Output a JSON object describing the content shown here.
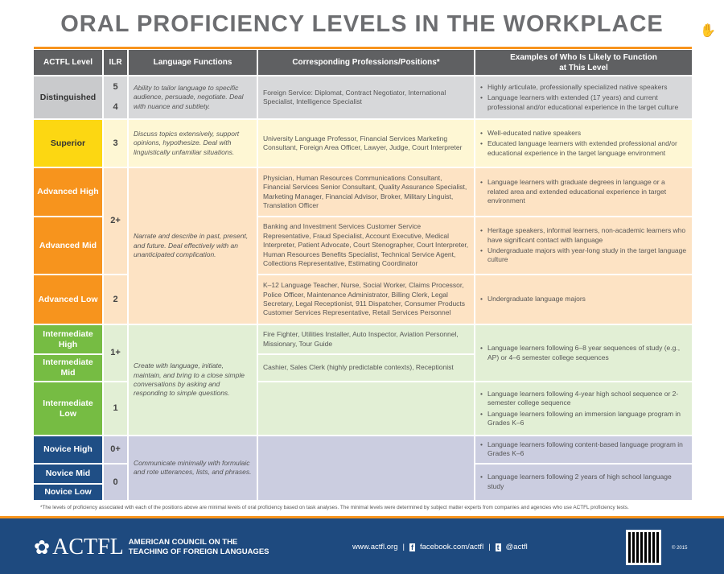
{
  "title": "ORAL PROFICIENCY LEVELS IN THE WORKPLACE",
  "headers": [
    "ACTFL Level",
    "ILR",
    "Language Functions",
    "Corresponding Professions/Positions*",
    "Examples of Who Is Likely to Function at This Level"
  ],
  "levels": [
    "Distinguished",
    "Superior",
    "Advanced High",
    "Advanced Mid",
    "Advanced Low",
    "Intermediate High",
    "Intermediate Mid",
    "Intermediate Low",
    "Novice High",
    "Novice Mid",
    "Novice Low"
  ],
  "ilr": {
    "dist_a": "5",
    "dist_b": "4",
    "sup": "3",
    "adv_high": "2+",
    "adv_low": "2",
    "int_high": "1+",
    "int_low": "1",
    "nov_high": "0+",
    "nov_low": "0"
  },
  "functions": {
    "distinguished": "Ability to tailor language to specific audience, persuade, negotiate. Deal with nuance and subtlety.",
    "superior": "Discuss topics extensively, support opinions, hypothesize. Deal with linguistically unfamiliar situations.",
    "advanced": "Narrate and describe in past, present, and future. Deal effectively with an unanticipated complication.",
    "intermediate": "Create with language, initiate, maintain, and bring to a close simple conversations by asking and responding to simple questions.",
    "novice": "Communicate minimally with formulaic and rote utterances, lists, and phrases."
  },
  "professions": {
    "distinguished": "Foreign Service: Diplomat, Contract Negotiator, International Specialist, Intelligence Specialist",
    "superior": "University Language Professor, Financial Services Marketing Consultant, Foreign Area Officer, Lawyer, Judge, Court Interpreter",
    "adv_high": "Physician, Human Resources Communications Consultant, Financial Services Senior Consultant, Quality Assurance Specialist, Marketing Manager, Financial Advisor, Broker, Military Linguist, Translation Officer",
    "adv_mid": "Banking and Investment Services Customer Service Representative, Fraud Specialist, Account Executive, Medical Interpreter, Patient Advocate, Court Stenographer, Court Interpreter, Human Resources Benefits Specialist, Technical Service Agent, Collections Representative, Estimating Coordinator",
    "adv_low": "K–12 Language Teacher, Nurse, Social Worker, Claims Processor, Police Officer, Maintenance Administrator, Billing Clerk, Legal Secretary, Legal Receptionist, 911 Dispatcher, Consumer Products Customer Services Representative, Retail Services Personnel",
    "int_high": "Fire Fighter, Utilities Installer, Auto Inspector, Aviation Personnel, Missionary, Tour Guide",
    "int_mid": "Cashier, Sales Clerk (highly predictable contexts), Receptionist"
  },
  "examples": {
    "distinguished": [
      "Highly articulate, professionally specialized native speakers",
      "Language learners with extended (17 years) and current professional and/or educational experience in the target culture"
    ],
    "superior": [
      "Well-educated native speakers",
      "Educated language learners with extended professional and/or educational experience in the target language environment"
    ],
    "adv_high": [
      "Language learners with graduate degrees in language or a related area and extended educational experience in target environment"
    ],
    "adv_mid": [
      "Heritage speakers, informal learners, non-academic learners who have significant contact with language",
      "Undergraduate majors with year-long study in the target language culture"
    ],
    "adv_low": [
      "Undergraduate language majors"
    ],
    "int_high_mid": [
      "Language learners following 6–8 year sequences of study (e.g., AP) or 4–6 semester college sequences"
    ],
    "int_low": [
      "Language learners following 4-year high school sequence or 2-semester college sequence",
      "Language learners following an immersion language program in Grades K–6"
    ],
    "nov_high": [
      "Language learners following content-based language program in Grades K–6"
    ],
    "nov_mid_low": [
      "Language learners following 2 years of high school language study"
    ]
  },
  "footnote": "*The levels of proficiency associated with each of the positions above are minimal levels of oral proficiency based on task analyses. The minimal levels were determined by subject matter experts from companies and agencies who use ACTFL proficiency tests.",
  "footer": {
    "logo": "ACTFL",
    "org_line1": "AMERICAN COUNCIL ON THE",
    "org_line2": "TEACHING OF FOREIGN LANGUAGES",
    "website": "www.actfl.org",
    "facebook": "facebook.com/actfl",
    "twitter": "@actfl",
    "copyright": "© 2015"
  },
  "colors": {
    "header": "#5f6062",
    "distinguished": "#c9cacc",
    "superior": "#fcd712",
    "advanced": "#f7941d",
    "intermediate": "#76bc43",
    "novice": "#1f4e85"
  }
}
